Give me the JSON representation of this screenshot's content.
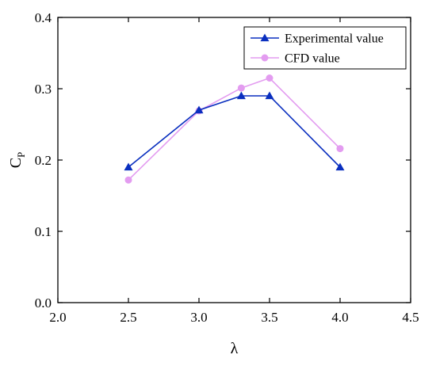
{
  "chart_data": {
    "type": "line",
    "title": "",
    "xlabel": "λ",
    "ylabel": {
      "main": "C",
      "sub": "P"
    },
    "xlim": [
      2.0,
      4.5
    ],
    "ylim": [
      0.0,
      0.4
    ],
    "x_ticks": [
      "2.0",
      "2.5",
      "3.0",
      "3.5",
      "4.0",
      "4.5"
    ],
    "y_ticks": [
      "0.0",
      "0.1",
      "0.2",
      "0.3",
      "0.4"
    ],
    "grid": false,
    "legend_position": "top-right",
    "series": [
      {
        "name": "Experimental value",
        "marker": "triangle",
        "color": "#0a2fbf",
        "x": [
          2.5,
          3.0,
          3.3,
          3.5,
          4.0
        ],
        "y": [
          0.19,
          0.27,
          0.29,
          0.29,
          0.19
        ]
      },
      {
        "name": "CFD value",
        "marker": "circle",
        "color": "#e39cf0",
        "x": [
          2.5,
          3.0,
          3.3,
          3.5,
          4.0
        ],
        "y": [
          0.172,
          0.269,
          0.301,
          0.315,
          0.216
        ]
      }
    ]
  }
}
